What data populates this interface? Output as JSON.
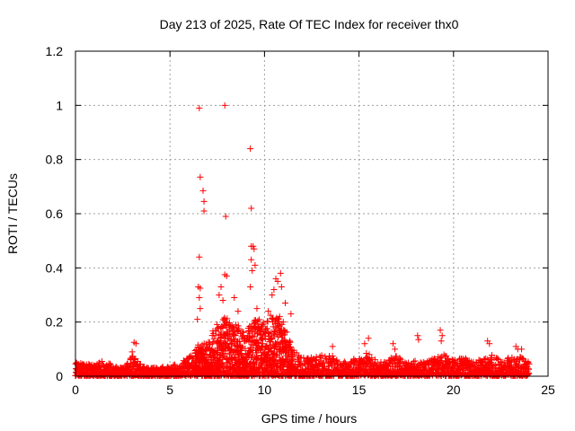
{
  "chart_data": {
    "type": "scatter",
    "title": "Day 213 of 2025, Rate Of TEC Index for receiver thx0",
    "xlabel": "GPS time / hours",
    "ylabel": "ROTI / TECUs",
    "xlim": [
      0,
      25
    ],
    "ylim": [
      0,
      1.2
    ],
    "xticks": [
      0,
      5,
      10,
      15,
      20,
      25
    ],
    "yticks": [
      0,
      0.2,
      0.4,
      0.6,
      0.8,
      1,
      1.2
    ],
    "xtick_labels": [
      "0",
      "5",
      "10",
      "15",
      "20",
      "25"
    ],
    "ytick_labels": [
      "0",
      "0.2",
      "0.4",
      "0.6",
      "0.8",
      "1",
      "1.2"
    ],
    "grid": true,
    "marker": "+",
    "color": "#ff0000",
    "series": [
      {
        "name": "ROTI",
        "points": [
          [
            6.55,
            0.99
          ],
          [
            7.9,
            1.0
          ],
          [
            9.25,
            0.84
          ],
          [
            6.6,
            0.735
          ],
          [
            6.75,
            0.685
          ],
          [
            6.8,
            0.645
          ],
          [
            6.8,
            0.61
          ],
          [
            9.3,
            0.62
          ],
          [
            7.95,
            0.59
          ],
          [
            6.55,
            0.44
          ],
          [
            9.3,
            0.48
          ],
          [
            9.4,
            0.48
          ],
          [
            9.45,
            0.47
          ],
          [
            9.3,
            0.43
          ],
          [
            9.35,
            0.39
          ],
          [
            9.5,
            0.41
          ],
          [
            7.9,
            0.375
          ],
          [
            8.0,
            0.37
          ],
          [
            10.85,
            0.38
          ],
          [
            10.6,
            0.36
          ],
          [
            6.5,
            0.33
          ],
          [
            6.6,
            0.325
          ],
          [
            7.7,
            0.33
          ],
          [
            9.25,
            0.33
          ],
          [
            10.7,
            0.35
          ],
          [
            6.55,
            0.29
          ],
          [
            6.6,
            0.25
          ],
          [
            6.45,
            0.21
          ],
          [
            7.6,
            0.3
          ],
          [
            7.8,
            0.28
          ],
          [
            8.4,
            0.29
          ],
          [
            8.6,
            0.24
          ],
          [
            9.6,
            0.25
          ],
          [
            10.2,
            0.24
          ],
          [
            10.5,
            0.32
          ],
          [
            10.4,
            0.3
          ],
          [
            10.9,
            0.33
          ],
          [
            11.1,
            0.27
          ],
          [
            10.8,
            0.22
          ],
          [
            11.4,
            0.23
          ],
          [
            3.1,
            0.125
          ],
          [
            3.2,
            0.12
          ],
          [
            3.0,
            0.09
          ],
          [
            13.6,
            0.11
          ],
          [
            15.3,
            0.12
          ],
          [
            15.5,
            0.14
          ],
          [
            16.8,
            0.12
          ],
          [
            16.9,
            0.1
          ],
          [
            18.1,
            0.15
          ],
          [
            18.15,
            0.135
          ],
          [
            19.3,
            0.17
          ],
          [
            19.4,
            0.15
          ],
          [
            19.35,
            0.13
          ],
          [
            21.8,
            0.13
          ],
          [
            21.9,
            0.12
          ],
          [
            23.3,
            0.11
          ],
          [
            23.4,
            0.1
          ],
          [
            23.6,
            0.1
          ]
        ],
        "baseline_envelope": [
          [
            0.0,
            0.05
          ],
          [
            0.5,
            0.05
          ],
          [
            1.0,
            0.04
          ],
          [
            1.5,
            0.06
          ],
          [
            2.0,
            0.04
          ],
          [
            2.5,
            0.03
          ],
          [
            3.0,
            0.08
          ],
          [
            3.5,
            0.04
          ],
          [
            4.0,
            0.03
          ],
          [
            4.5,
            0.035
          ],
          [
            5.0,
            0.04
          ],
          [
            5.5,
            0.05
          ],
          [
            6.0,
            0.07
          ],
          [
            6.5,
            0.12
          ],
          [
            7.0,
            0.13
          ],
          [
            7.5,
            0.2
          ],
          [
            8.0,
            0.22
          ],
          [
            8.5,
            0.2
          ],
          [
            9.0,
            0.16
          ],
          [
            9.5,
            0.22
          ],
          [
            10.0,
            0.2
          ],
          [
            10.5,
            0.24
          ],
          [
            11.0,
            0.2
          ],
          [
            11.5,
            0.1
          ],
          [
            12.0,
            0.07
          ],
          [
            12.5,
            0.07
          ],
          [
            13.0,
            0.08
          ],
          [
            13.5,
            0.08
          ],
          [
            14.0,
            0.06
          ],
          [
            14.5,
            0.06
          ],
          [
            15.0,
            0.07
          ],
          [
            15.5,
            0.09
          ],
          [
            16.0,
            0.05
          ],
          [
            16.5,
            0.06
          ],
          [
            17.0,
            0.08
          ],
          [
            17.5,
            0.05
          ],
          [
            18.0,
            0.06
          ],
          [
            18.5,
            0.05
          ],
          [
            19.0,
            0.07
          ],
          [
            19.5,
            0.08
          ],
          [
            20.0,
            0.06
          ],
          [
            20.5,
            0.07
          ],
          [
            21.0,
            0.06
          ],
          [
            21.5,
            0.06
          ],
          [
            22.0,
            0.08
          ],
          [
            22.5,
            0.06
          ],
          [
            23.0,
            0.07
          ],
          [
            23.5,
            0.08
          ],
          [
            24.0,
            0.05
          ]
        ]
      }
    ]
  }
}
